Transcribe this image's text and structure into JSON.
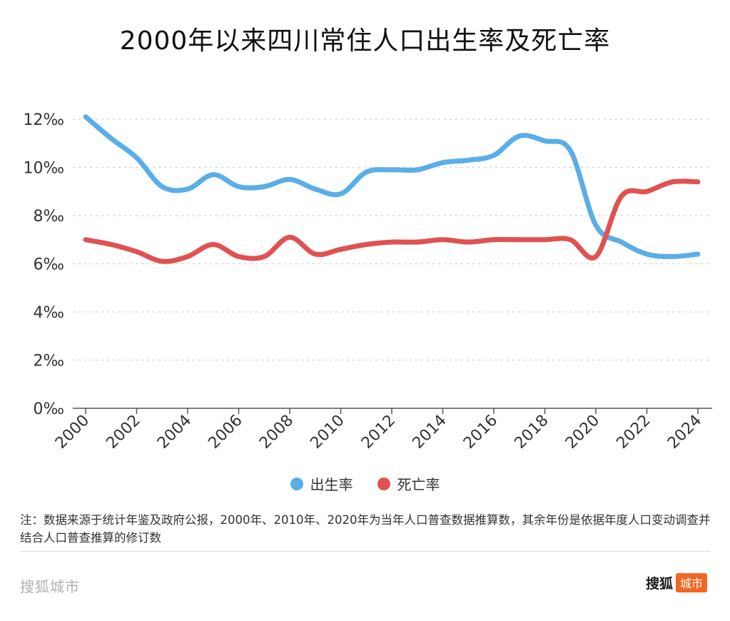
{
  "title": "2000年以来四川常住人口出生率及死亡率",
  "legend": {
    "birth": "出生率",
    "death": "死亡率"
  },
  "note": "注：数据来源于统计年鉴及政府公报，2000年、2010年、2020年为当年人口普查数据推算数，其余年份是依据年度人口变动调查并结合人口普查推算的修订数",
  "footer": {
    "brand": "搜狐城市",
    "logo_main": "搜狐",
    "logo_tag": "城市"
  },
  "colors": {
    "birth": "#5aaee8",
    "death": "#e05252",
    "logo_tag": "#f26522"
  },
  "chart_data": {
    "type": "line",
    "x": [
      2000,
      2001,
      2002,
      2003,
      2004,
      2005,
      2006,
      2007,
      2008,
      2009,
      2010,
      2011,
      2012,
      2013,
      2014,
      2015,
      2016,
      2017,
      2018,
      2019,
      2020,
      2021,
      2022,
      2023,
      2024
    ],
    "series": [
      {
        "name": "出生率",
        "color": "#5aaee8",
        "values": [
          12.1,
          11.2,
          10.4,
          9.2,
          9.1,
          9.7,
          9.2,
          9.2,
          9.5,
          9.1,
          8.9,
          9.8,
          9.9,
          9.9,
          10.2,
          10.3,
          10.5,
          11.3,
          11.1,
          10.7,
          7.6,
          6.9,
          6.4,
          6.3,
          6.4
        ]
      },
      {
        "name": "死亡率",
        "color": "#e05252",
        "values": [
          7.0,
          6.8,
          6.5,
          6.1,
          6.3,
          6.8,
          6.3,
          6.3,
          7.1,
          6.4,
          6.6,
          6.8,
          6.9,
          6.9,
          7.0,
          6.9,
          7.0,
          7.0,
          7.0,
          7.0,
          6.3,
          8.8,
          9.0,
          9.4,
          9.4
        ]
      }
    ],
    "y_ticks": [
      "0‰",
      "2‰",
      "4‰",
      "6‰",
      "8‰",
      "10‰",
      "12‰"
    ],
    "x_ticks": [
      "2000",
      "2002",
      "2004",
      "2006",
      "2008",
      "2010",
      "2012",
      "2014",
      "2016",
      "2018",
      "2020",
      "2022",
      "2024"
    ],
    "ylim": [
      0,
      12
    ],
    "xlim": [
      2000,
      2024
    ],
    "grid": true,
    "legend_position": "bottom"
  }
}
